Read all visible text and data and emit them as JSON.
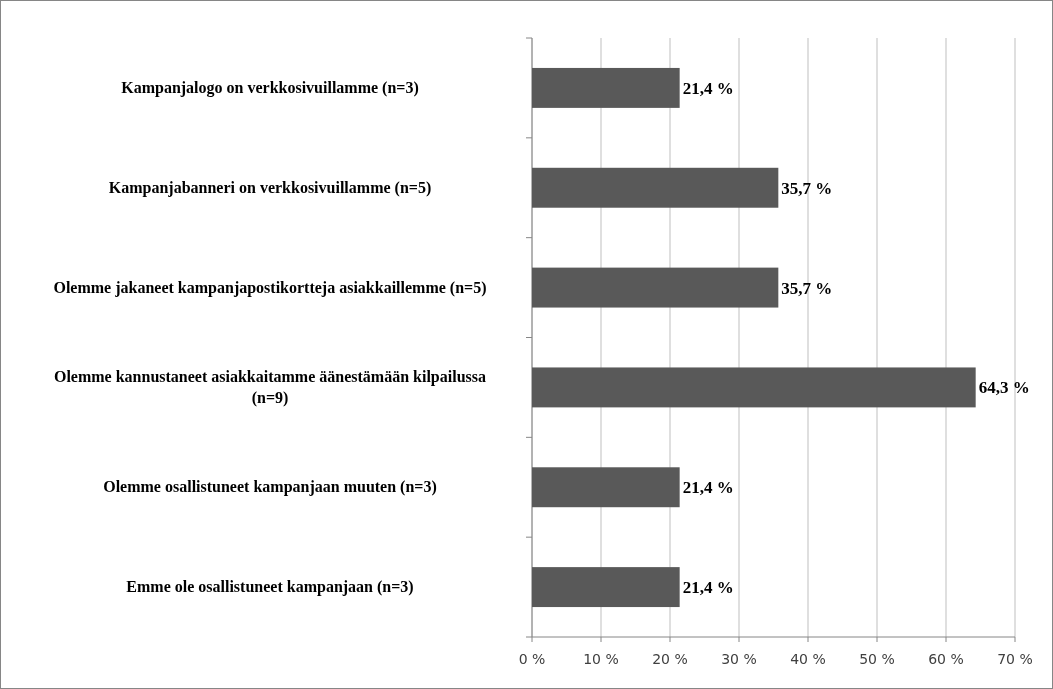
{
  "chart_data": {
    "type": "bar",
    "orientation": "horizontal",
    "categories": [
      "Kampanjalogo on verkkosivuillamme (n=3)",
      "Kampanjabanneri on verkkosivuillamme (n=5)",
      "Olemme jakaneet kampanjapostikortteja asiakkaillemme (n=5)",
      "Olemme kannustaneet asiakkaitamme äänestämään kilpailussa (n=9)",
      "Olemme osallistuneet kampanjaan muuten (n=3)",
      "Emme ole osallistuneet kampanjaan (n=3)"
    ],
    "values": [
      21.4,
      35.7,
      35.7,
      64.3,
      21.4,
      21.4
    ],
    "value_labels": [
      "21,4 %",
      "35,7 %",
      "35,7 %",
      "64,3 %",
      "21,4 %",
      "21,4 %"
    ],
    "color": "#595959",
    "xlim": [
      0,
      70
    ],
    "xticks": [
      {
        "value": 0,
        "label": "0 %"
      },
      {
        "value": 10,
        "label": "10 %"
      },
      {
        "value": 20,
        "label": "20 %"
      },
      {
        "value": 30,
        "label": "30 %"
      },
      {
        "value": 40,
        "label": "40 %"
      },
      {
        "value": 50,
        "label": "50 %"
      },
      {
        "value": 60,
        "label": "60 %"
      },
      {
        "value": 70,
        "label": "70 %"
      }
    ],
    "grid": "x"
  }
}
